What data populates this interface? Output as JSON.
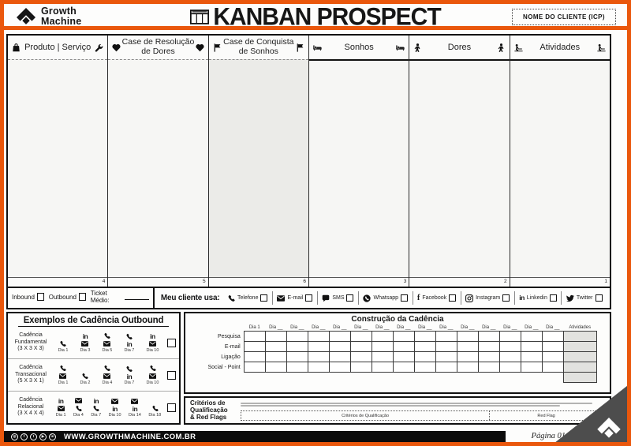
{
  "colors": {
    "accent_orange": "#EA570C",
    "triangle_gray": "#4D4D4D"
  },
  "header": {
    "brand_line1": "Growth",
    "brand_line2": "Machine",
    "title": "KANBAN PROSPECT",
    "client_box_label": "NOME DO CLIENTE (ICP)"
  },
  "columns": [
    {
      "lines": [
        "Produto | Serviço"
      ],
      "icon_left": "bag-icon",
      "icon_right": "wrench-icon",
      "number": "4"
    },
    {
      "lines": [
        "Case de Resolução",
        "de Dores"
      ],
      "icon_left": "heart-icon",
      "icon_right": "heart-icon",
      "number": "5"
    },
    {
      "lines": [
        "Case de Conquista",
        "de Sonhos"
      ],
      "icon_left": "flag-icon",
      "icon_right": "flag-icon",
      "number": "6"
    },
    {
      "lines": [
        "Sonhos"
      ],
      "icon_left": "bed-icon",
      "icon_right": "bed-icon",
      "number": "3"
    },
    {
      "lines": [
        "Dores"
      ],
      "icon_left": "pain-icon",
      "icon_right": "pain-icon",
      "number": "2"
    },
    {
      "lines": [
        "Atividades"
      ],
      "icon_left": "activity-icon",
      "icon_right": "activity-icon",
      "number": "1"
    }
  ],
  "inout": {
    "inbound_label": "Inbound",
    "outbound_label": "Outbound",
    "ticket_label": "Ticket Médio:"
  },
  "channels": {
    "label": "Meu cliente usa:",
    "items": [
      {
        "label": "Telefone",
        "icon": "phone-icon"
      },
      {
        "label": "E-mail",
        "icon": "envelope-icon"
      },
      {
        "label": "SMS",
        "icon": "sms-icon"
      },
      {
        "label": "Whatsapp",
        "icon": "whatsapp-icon"
      },
      {
        "label": "Facebook",
        "icon": "facebook-icon"
      },
      {
        "label": "Instagram",
        "icon": "instagram-icon"
      },
      {
        "label": "Linkedin",
        "icon": "linkedin-icon"
      },
      {
        "label": "Twitter",
        "icon": "twitter-icon"
      }
    ]
  },
  "cadence_examples": {
    "title": "Exemplos de Cadência Outbound",
    "rows": [
      {
        "name_lines": [
          "Cadência",
          "Fundamental",
          "(3 X 3 X 3)"
        ],
        "days": [
          {
            "label": "Dia 1",
            "icons": [
              "phone-icon"
            ]
          },
          {
            "label": "Dia 3",
            "icons": [
              "linkedin-icon",
              "envelope-icon"
            ]
          },
          {
            "label": "Dia 5",
            "icons": [
              "phone-icon",
              "envelope-icon"
            ]
          },
          {
            "label": "Dia 7",
            "icons": [
              "phone-icon",
              "linkedin-icon"
            ]
          },
          {
            "label": "Dia 10",
            "icons": [
              "linkedin-icon",
              "envelope-icon"
            ]
          }
        ]
      },
      {
        "name_lines": [
          "Cadência",
          "Transacional",
          "(5 X 3 X 1)"
        ],
        "days": [
          {
            "label": "Dia 1",
            "icons": [
              "phone-icon",
              "envelope-icon"
            ]
          },
          {
            "label": "Dia 2",
            "icons": [
              "phone-icon"
            ]
          },
          {
            "label": "Dia 4",
            "icons": [
              "phone-icon",
              "envelope-icon"
            ]
          },
          {
            "label": "Dia 7",
            "icons": [
              "phone-icon",
              "linkedin-icon"
            ]
          },
          {
            "label": "Dia 10",
            "icons": [
              "phone-icon",
              "envelope-icon"
            ]
          }
        ]
      },
      {
        "name_lines": [
          "Cadência",
          "Relacional",
          "(3 X 4 X 4)"
        ],
        "days": [
          {
            "label": "Dia 1",
            "icons": [
              "linkedin-icon",
              "envelope-icon"
            ]
          },
          {
            "label": "Dia 4",
            "icons": [
              "envelope-icon",
              "phone-icon"
            ]
          },
          {
            "label": "Dia 7",
            "icons": [
              "linkedin-icon",
              "phone-icon"
            ]
          },
          {
            "label": "Dia 10",
            "icons": [
              "envelope-icon",
              "linkedin-icon"
            ]
          },
          {
            "label": "Dia 14",
            "icons": [
              "envelope-icon",
              "linkedin-icon"
            ]
          },
          {
            "label": "Dia 18",
            "icons": [
              "phone-icon"
            ]
          }
        ]
      }
    ]
  },
  "cadence_builder": {
    "title": "Construção da Cadência",
    "day_headers": [
      "Dia 1",
      "Dia __",
      "Dia __",
      "Dia __",
      "Dia __",
      "Dia __",
      "Dia __",
      "Dia __",
      "Dia __",
      "Dia __",
      "Dia __",
      "Dia __",
      "Dia __",
      "Dia __",
      "Dia __"
    ],
    "activities_header": "Atividades",
    "row_labels": [
      "Pesquisa",
      "E-mail",
      "Ligação",
      "Social - Point"
    ]
  },
  "criteria": {
    "label_lines": [
      "Critérios de",
      "Qualificação",
      "& Red Flags"
    ],
    "section_left": "Critérios de Qualificação",
    "section_right": "Red Flag"
  },
  "footer": {
    "socials": [
      "instagram-icon",
      "facebook-icon",
      "twitter-icon",
      "youtube-icon",
      "linkedin-icon"
    ],
    "url": "WWW.GROWTHMACHINE.COM.BR",
    "page_label": "Página 01"
  }
}
